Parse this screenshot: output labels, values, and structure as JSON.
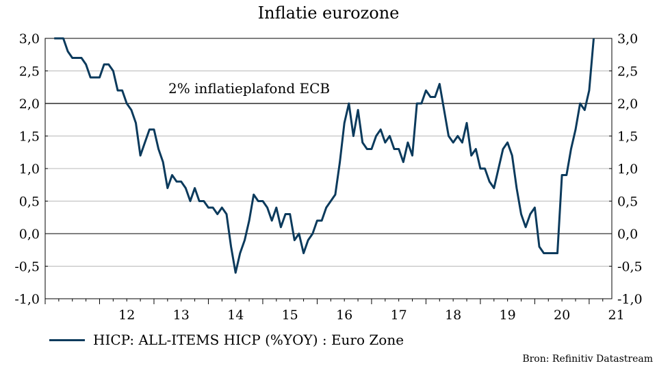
{
  "chart_data": {
    "type": "line",
    "title": "Inflatie eurozone",
    "ylim": [
      -1.0,
      3.0
    ],
    "yticks": [
      "3,0",
      "2,5",
      "2,0",
      "1,5",
      "1,0",
      "0,5",
      "0,0",
      "-0,5",
      "-1,0"
    ],
    "xtick_labels": [
      "12",
      "13",
      "14",
      "15",
      "16",
      "17",
      "18",
      "19",
      "20",
      "21"
    ],
    "grid": true,
    "reference_line": {
      "value": 2.0,
      "label": "2% inflatieplafond ECB"
    },
    "series": [
      {
        "name": "HICP: ALL-ITEMS HICP (%YOY) : Euro Zone",
        "color": "#0b3a5c",
        "start": "2011-03",
        "frequency": "monthly",
        "values": [
          3.0,
          3.0,
          3.0,
          2.8,
          2.7,
          2.7,
          2.7,
          2.6,
          2.4,
          2.4,
          2.4,
          2.6,
          2.6,
          2.5,
          2.2,
          2.2,
          2.0,
          1.9,
          1.7,
          1.2,
          1.4,
          1.6,
          1.6,
          1.3,
          1.1,
          0.7,
          0.9,
          0.8,
          0.8,
          0.7,
          0.5,
          0.7,
          0.5,
          0.5,
          0.4,
          0.4,
          0.3,
          0.4,
          0.3,
          -0.2,
          -0.6,
          -0.3,
          -0.1,
          0.2,
          0.6,
          0.5,
          0.5,
          0.4,
          0.2,
          0.4,
          0.1,
          0.3,
          0.3,
          -0.1,
          0.0,
          -0.3,
          -0.1,
          0.0,
          0.2,
          0.2,
          0.4,
          0.5,
          0.6,
          1.1,
          1.7,
          2.0,
          1.5,
          1.9,
          1.4,
          1.3,
          1.3,
          1.5,
          1.6,
          1.4,
          1.5,
          1.3,
          1.3,
          1.1,
          1.4,
          1.2,
          2.0,
          2.0,
          2.2,
          2.1,
          2.1,
          2.3,
          1.9,
          1.5,
          1.4,
          1.5,
          1.4,
          1.7,
          1.2,
          1.3,
          1.0,
          1.0,
          0.8,
          0.7,
          1.0,
          1.3,
          1.4,
          1.2,
          0.7,
          0.3,
          0.1,
          0.3,
          0.4,
          -0.2,
          -0.3,
          -0.3,
          -0.3,
          -0.3,
          0.9,
          0.9,
          1.3,
          1.6,
          2.0,
          1.9,
          2.2,
          3.0
        ]
      }
    ]
  },
  "legend": {
    "label": "HICP: ALL-ITEMS HICP (%YOY) : Euro Zone"
  },
  "source": "Bron: Refinitiv Datastream"
}
